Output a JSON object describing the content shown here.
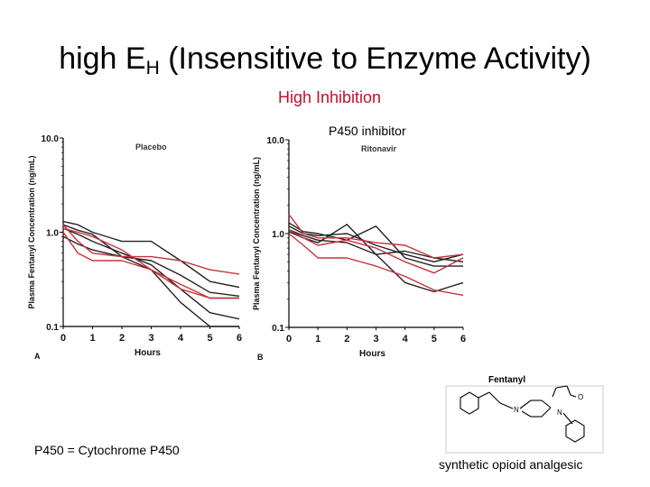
{
  "slide": {
    "title_prefix": "high E",
    "title_sub": "H",
    "title_suffix": " (Insensitive to Enzyme Activity)",
    "subtitle": "High Inhibition",
    "inhibitor_label": "P450 inhibitor",
    "footnote": "P450 = Cytochrome P450",
    "structure_caption": "synthetic opioid analgesic",
    "structure_title": "Fentanyl",
    "structure_atoms": [
      "N",
      "N",
      "O"
    ],
    "colors": {
      "title": "#000000",
      "subtitle": "#c0102a",
      "red_series": "#c8323c",
      "black_series": "#222222"
    }
  },
  "chart_data": [
    {
      "type": "line",
      "panel": "A",
      "title": "Placebo",
      "xlabel": "Hours",
      "ylabel": "Plasma Fentanyl Concentration (ng/mL)",
      "x_ticks": [
        "0",
        "1",
        "2",
        "3",
        "4",
        "5",
        "6"
      ],
      "y_ticks": [
        "0.1",
        "1.0",
        "10.0"
      ],
      "y_scale": "log",
      "xlim": [
        0,
        6
      ],
      "ylim": [
        0.1,
        10
      ],
      "x": [
        0,
        0.5,
        1,
        2,
        3,
        4,
        5,
        6
      ],
      "series": [
        {
          "color": "#222222",
          "values": [
            1.3,
            1.2,
            1.0,
            0.8,
            0.8,
            0.5,
            0.3,
            0.26
          ]
        },
        {
          "color": "#222222",
          "values": [
            1.2,
            1.05,
            0.95,
            0.55,
            0.5,
            0.35,
            0.23,
            0.21
          ]
        },
        {
          "color": "#222222",
          "values": [
            1.1,
            0.95,
            0.8,
            0.6,
            0.45,
            0.25,
            0.14,
            0.12
          ]
        },
        {
          "color": "#222222",
          "values": [
            0.9,
            0.75,
            0.65,
            0.55,
            0.4,
            0.18,
            0.1,
            0.1
          ]
        },
        {
          "color": "#c8323c",
          "values": [
            1.2,
            0.8,
            0.6,
            0.55,
            0.55,
            0.5,
            0.4,
            0.36
          ]
        },
        {
          "color": "#c8323c",
          "values": [
            1.0,
            0.6,
            0.5,
            0.5,
            0.4,
            0.28,
            0.2,
            0.2
          ]
        },
        {
          "color": "#c8323c",
          "values": [
            1.1,
            1.0,
            0.9,
            0.65,
            0.4,
            0.25,
            0.2,
            0.2
          ]
        }
      ]
    },
    {
      "type": "line",
      "panel": "B",
      "title": "Ritonavir",
      "xlabel": "Hours",
      "ylabel": "Plasma Fentanyl Concentration (ng/mL)",
      "x_ticks": [
        "0",
        "1",
        "2",
        "3",
        "4",
        "5",
        "6"
      ],
      "y_ticks": [
        "0.1",
        "1.0",
        "10.0"
      ],
      "y_scale": "log",
      "xlim": [
        0,
        6
      ],
      "ylim": [
        0.1,
        10
      ],
      "x": [
        0,
        0.5,
        1,
        2,
        3,
        4,
        5,
        6
      ],
      "series": [
        {
          "color": "#222222",
          "values": [
            1.3,
            1.05,
            1.0,
            0.85,
            1.2,
            0.55,
            0.45,
            0.45
          ]
        },
        {
          "color": "#222222",
          "values": [
            1.2,
            1.0,
            0.95,
            1.0,
            0.75,
            0.6,
            0.5,
            0.6
          ]
        },
        {
          "color": "#222222",
          "values": [
            1.1,
            0.95,
            0.85,
            0.8,
            0.6,
            0.65,
            0.55,
            0.5
          ]
        },
        {
          "color": "#222222",
          "values": [
            1.05,
            0.9,
            0.8,
            1.25,
            0.6,
            0.3,
            0.24,
            0.3
          ]
        },
        {
          "color": "#c8323c",
          "values": [
            1.6,
            1.0,
            0.9,
            0.9,
            0.8,
            0.75,
            0.55,
            0.6
          ]
        },
        {
          "color": "#c8323c",
          "values": [
            1.1,
            0.9,
            0.75,
            0.85,
            0.7,
            0.5,
            0.38,
            0.55
          ]
        },
        {
          "color": "#c8323c",
          "values": [
            1.0,
            0.75,
            0.55,
            0.55,
            0.45,
            0.35,
            0.25,
            0.22
          ]
        }
      ]
    }
  ]
}
